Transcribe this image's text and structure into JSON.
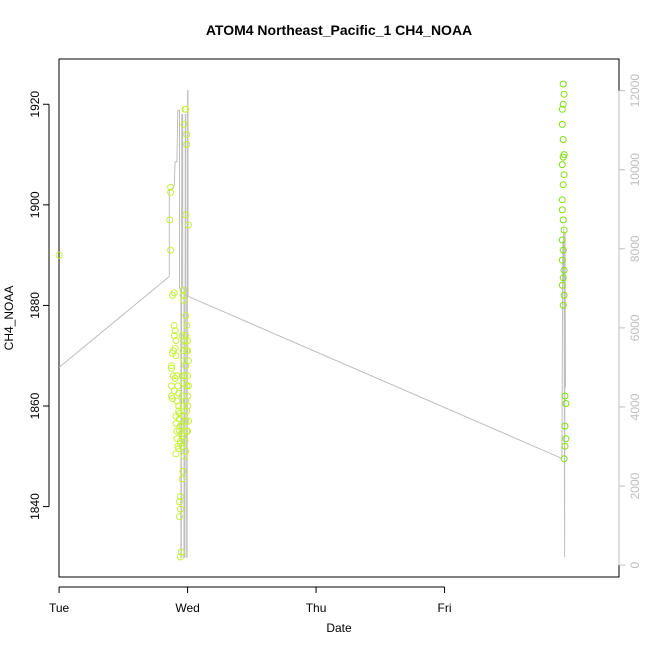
{
  "chart_data": {
    "type": "scatter",
    "title": "ATOM4 Northeast_Pacific_1 CH4_NOAA",
    "xlabel": "Date",
    "ylabel": "CH4_NOAA",
    "x_axis": {
      "type": "date",
      "range": [
        "Mon 23:59",
        "Sat 08:35"
      ],
      "ticks": [
        {
          "value": "Tue 00:00",
          "label": "Tue"
        },
        {
          "value": "Wed 00:00",
          "label": "Wed"
        },
        {
          "value": "Thu 00:00",
          "label": "Thu"
        },
        {
          "value": "Fri 00:00",
          "label": "Fri"
        }
      ]
    },
    "y_axis": {
      "range": [
        1826,
        1929
      ],
      "ticks": [
        1840,
        1860,
        1880,
        1900,
        1920
      ]
    },
    "y2_axis": {
      "range": [
        -300,
        12800
      ],
      "ticks": [
        0,
        2000,
        4000,
        6000,
        8000,
        10000,
        12000
      ],
      "color": "#bebebe"
    },
    "colors": {
      "points_light": "#c5f03c",
      "points_dark": "#7fe010",
      "altitude_line": "#bebebe",
      "axis": "#000000"
    },
    "series": [
      {
        "role": "CH4_NOAA points",
        "axis": "left",
        "points": [
          [
            "Tue 00:00",
            1890.0
          ],
          [
            "Tue 20:50",
            1903.5
          ],
          [
            "Tue 20:50",
            1902.5
          ],
          [
            "Tue 20:40",
            1897.0
          ],
          [
            "Tue 20:50",
            1891.0
          ],
          [
            "Tue 21:30",
            1882.5
          ],
          [
            "Tue 21:10",
            1882.0
          ],
          [
            "Tue 21:30",
            1876.0
          ],
          [
            "Tue 21:40",
            1875.0
          ],
          [
            "Tue 21:30",
            1874.0
          ],
          [
            "Tue 21:50",
            1873.0
          ],
          [
            "Tue 21:40",
            1871.5
          ],
          [
            "Tue 21:20",
            1871.0
          ],
          [
            "Tue 21:10",
            1870.5
          ],
          [
            "Tue 21:50",
            1870.0
          ],
          [
            "Tue 21:00",
            1868.0
          ],
          [
            "Tue 21:00",
            1867.5
          ],
          [
            "Tue 21:20",
            1866.0
          ],
          [
            "Tue 21:40",
            1865.5
          ],
          [
            "Tue 21:00",
            1864.0
          ],
          [
            "Tue 21:30",
            1863.0
          ],
          [
            "Tue 21:00",
            1862.0
          ],
          [
            "Tue 21:10",
            1861.5
          ],
          [
            "Tue 22:00",
            1866.0
          ],
          [
            "Tue 22:10",
            1864.0
          ],
          [
            "Tue 22:20",
            1862.5
          ],
          [
            "Tue 22:00",
            1861.0
          ],
          [
            "Tue 21:50",
            1858.0
          ],
          [
            "Tue 21:50",
            1856.5
          ],
          [
            "Tue 22:00",
            1855.0
          ],
          [
            "Tue 22:00",
            1853.5
          ],
          [
            "Tue 22:10",
            1852.0
          ],
          [
            "Tue 21:50",
            1850.5
          ],
          [
            "Tue 22:20",
            1859.0
          ],
          [
            "Tue 22:30",
            1857.5
          ],
          [
            "Tue 22:30",
            1855.0
          ],
          [
            "Tue 22:40",
            1853.0
          ],
          [
            "Tue 22:20",
            1851.5
          ],
          [
            "Tue 22:40",
            1856.0
          ],
          [
            "Tue 22:20",
            1860.0
          ],
          [
            "Tue 22:30",
            1858.5
          ],
          [
            "Tue 22:50",
            1854.5
          ],
          [
            "Tue 22:40",
            1852.5
          ],
          [
            "Tue 22:30",
            1841.0
          ],
          [
            "Tue 22:40",
            1839.5
          ],
          [
            "Tue 22:30",
            1838.0
          ],
          [
            "Tue 22:40",
            1842.0
          ],
          [
            "Tue 22:50",
            1831.0
          ],
          [
            "Tue 22:40",
            1830.0
          ],
          [
            "Tue 23:10",
            1883.0
          ],
          [
            "Tue 23:10",
            1882.0
          ],
          [
            "Tue 23:20",
            1881.0
          ],
          [
            "Tue 23:00",
            1874.0
          ],
          [
            "Tue 23:30",
            1873.0
          ],
          [
            "Tue 23:10",
            1871.0
          ],
          [
            "Tue 23:20",
            1869.0
          ],
          [
            "Tue 23:00",
            1866.0
          ],
          [
            "Tue 23:20",
            1864.5
          ],
          [
            "Tue 23:00",
            1862.0
          ],
          [
            "Tue 23:10",
            1860.0
          ],
          [
            "Tue 23:20",
            1858.0
          ],
          [
            "Tue 23:00",
            1856.0
          ],
          [
            "Tue 23:10",
            1854.0
          ],
          [
            "Tue 23:00",
            1852.0
          ],
          [
            "Tue 23:20",
            1850.0
          ],
          [
            "Tue 23:10",
            1847.0
          ],
          [
            "Tue 23:00",
            1845.5
          ],
          [
            "Tue 23:30",
            1919.0
          ],
          [
            "Tue 23:40",
            1919.0
          ],
          [
            "Tue 23:20",
            1916.0
          ],
          [
            "Tue 23:50",
            1914.0
          ],
          [
            "Tue 23:50",
            1912.0
          ],
          [
            "Tue 23:40",
            1898.0
          ],
          [
            "Tue 23:40",
            1878.0
          ],
          [
            "Tue 23:50",
            1876.0
          ],
          [
            "Tue 23:40",
            1874.0
          ],
          [
            "Tue 23:30",
            1872.0
          ],
          [
            "Tue 23:50",
            1871.0
          ],
          [
            "Tue 23:40",
            1868.0
          ],
          [
            "Tue 23:30",
            1866.0
          ],
          [
            "Tue 23:50",
            1864.0
          ],
          [
            "Tue 23:40",
            1861.0
          ],
          [
            "Tue 23:50",
            1859.0
          ],
          [
            "Tue 23:40",
            1857.0
          ],
          [
            "Tue 23:50",
            1855.0
          ],
          [
            "Tue 23:30",
            1853.0
          ],
          [
            "Tue 23:40",
            1851.0
          ],
          [
            "Wed 00:00",
            1873.0
          ],
          [
            "Wed 00:00",
            1871.0
          ],
          [
            "Wed 00:10",
            1869.0
          ],
          [
            "Wed 00:00",
            1866.0
          ],
          [
            "Wed 00:10",
            1864.0
          ],
          [
            "Wed 00:00",
            1862.0
          ],
          [
            "Wed 00:00",
            1860.0
          ],
          [
            "Wed 00:10",
            1857.0
          ],
          [
            "Wed 00:00",
            1855.0
          ],
          [
            "Wed 00:10",
            1896.0
          ],
          [
            "Fri 22:00",
            1919.0
          ],
          [
            "Fri 22:10",
            1924.0
          ],
          [
            "Fri 22:20",
            1922.0
          ],
          [
            "Fri 22:10",
            1920.0
          ],
          [
            "Fri 22:00",
            1916.0
          ],
          [
            "Fri 22:10",
            1913.0
          ],
          [
            "Fri 22:20",
            1910.0
          ],
          [
            "Fri 22:10",
            1909.5
          ],
          [
            "Fri 22:00",
            1908.0
          ],
          [
            "Fri 22:20",
            1906.0
          ],
          [
            "Fri 22:10",
            1904.0
          ],
          [
            "Fri 22:00",
            1901.0
          ],
          [
            "Fri 22:00",
            1899.0
          ],
          [
            "Fri 22:10",
            1897.0
          ],
          [
            "Fri 22:20",
            1895.0
          ],
          [
            "Fri 22:00",
            1893.0
          ],
          [
            "Fri 22:10",
            1891.0
          ],
          [
            "Fri 22:00",
            1889.0
          ],
          [
            "Fri 22:20",
            1887.0
          ],
          [
            "Fri 22:10",
            1885.5
          ],
          [
            "Fri 22:00",
            1884.0
          ],
          [
            "Fri 22:20",
            1882.0
          ],
          [
            "Fri 22:10",
            1880.0
          ],
          [
            "Fri 22:30",
            1862.0
          ],
          [
            "Fri 22:30",
            1856.0
          ],
          [
            "Fri 22:30",
            1852.0
          ],
          [
            "Fri 22:20",
            1849.5
          ],
          [
            "Fri 22:40",
            1860.5
          ],
          [
            "Fri 22:40",
            1853.5
          ]
        ]
      },
      {
        "role": "altitude line",
        "axis": "right",
        "points": [
          [
            "Tue 00:00",
            5000
          ],
          [
            "Tue 20:35",
            7300
          ],
          [
            "Tue 20:35",
            9500
          ],
          [
            "Tue 21:00",
            9500
          ],
          [
            "Tue 21:30",
            9600
          ],
          [
            "Tue 21:40",
            10200
          ],
          [
            "Tue 22:00",
            10200
          ],
          [
            "Tue 22:10",
            11500
          ],
          [
            "Tue 22:30",
            11500
          ],
          [
            "Tue 22:30",
            7000
          ],
          [
            "Tue 22:45",
            7000
          ],
          [
            "Tue 22:45",
            200
          ],
          [
            "Tue 22:50",
            200
          ],
          [
            "Tue 22:55",
            11400
          ],
          [
            "Tue 23:05",
            11400
          ],
          [
            "Tue 23:05",
            7000
          ],
          [
            "Tue 23:20",
            7000
          ],
          [
            "Tue 23:20",
            200
          ],
          [
            "Tue 23:30",
            200
          ],
          [
            "Tue 23:35",
            11400
          ],
          [
            "Tue 23:40",
            11400
          ],
          [
            "Tue 23:40",
            7000
          ],
          [
            "Tue 23:50",
            7000
          ],
          [
            "Tue 23:50",
            200
          ],
          [
            "Tue 23:55",
            200
          ],
          [
            "Wed 00:00",
            12000
          ],
          [
            "Wed 00:05",
            12000
          ],
          [
            "Wed 00:05",
            6800
          ],
          [
            "Fri 21:55",
            2700
          ],
          [
            "Fri 22:05",
            8200
          ],
          [
            "Fri 22:10",
            7200
          ],
          [
            "Fri 22:15",
            8500
          ],
          [
            "Fri 22:20",
            7500
          ],
          [
            "Fri 22:25",
            200
          ],
          [
            "Fri 22:30",
            8400
          ],
          [
            "Fri 22:35",
            4500
          ]
        ]
      }
    ],
    "grid": false,
    "legend": "none"
  }
}
